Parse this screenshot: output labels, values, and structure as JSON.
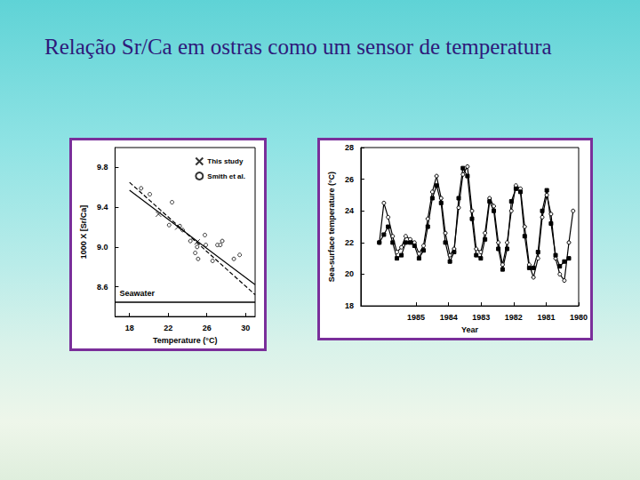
{
  "title": "Relação Sr/Ca em ostras como um sensor de temperatura",
  "chart_data": [
    {
      "type": "scatter",
      "xlabel": "Temperature (°C)",
      "ylabel": "1000 X [Sr/Ca]",
      "xlim": [
        16.5,
        31
      ],
      "xticks": [
        18,
        22,
        26,
        30
      ],
      "ylim": [
        8.3,
        10.0
      ],
      "yticks": [
        8.6,
        {
          "value": 9,
          "label": "9.0"
        },
        9.4,
        9.8
      ],
      "grid": false,
      "legend": "upper right",
      "annotations": [
        {
          "text": "Seawater",
          "y": 8.45
        }
      ],
      "series": [
        {
          "name": "This study",
          "marker": "x",
          "color": "#000000",
          "x": [
            21.0,
            23.0,
            25.0
          ],
          "values": [
            9.33,
            9.2,
            9.05
          ]
        },
        {
          "name": "Smith et al.",
          "marker": "circle",
          "color": "#000000",
          "x": [
            19.2,
            20.1,
            22.4,
            22.1,
            23.2,
            23.5,
            24.3,
            25.0,
            24.8,
            25.1,
            25.8,
            25.9,
            27.1,
            27.4,
            27.6,
            26.6,
            28.8,
            29.4
          ],
          "values": [
            9.59,
            9.53,
            9.45,
            9.22,
            9.21,
            9.17,
            9.06,
            9.0,
            8.94,
            8.88,
            9.12,
            9.02,
            9.02,
            9.02,
            9.06,
            8.86,
            8.88,
            8.92
          ]
        },
        {
          "type": "line",
          "line_style": "solid",
          "color": "#000000",
          "x": [
            18,
            31
          ],
          "values": [
            9.57,
            8.62
          ]
        },
        {
          "type": "line",
          "line_style": "dashed",
          "color": "#000000",
          "x": [
            18,
            31
          ],
          "values": [
            9.65,
            8.52
          ]
        }
      ]
    },
    {
      "type": "line",
      "xlabel": "Year",
      "ylabel": "Sea-surface temperature (°C)",
      "xlim": [
        1986.7,
        1980
      ],
      "xticks": [
        1985,
        1984,
        1983,
        1982,
        1981,
        1980
      ],
      "ylim": [
        18,
        28
      ],
      "yticks": [
        18,
        20,
        22,
        24,
        26,
        28
      ],
      "grid": false,
      "x": [
        1986.13,
        1985.99,
        1985.86,
        1985.72,
        1985.59,
        1985.45,
        1985.32,
        1985.18,
        1985.05,
        1984.91,
        1984.77,
        1984.64,
        1984.5,
        1984.37,
        1984.23,
        1984.1,
        1983.96,
        1983.83,
        1983.69,
        1983.56,
        1983.42,
        1983.28,
        1983.15,
        1983.01,
        1982.88,
        1982.74,
        1982.61,
        1982.47,
        1982.34,
        1982.2,
        1982.07,
        1981.93,
        1981.79,
        1981.66,
        1981.52,
        1981.39,
        1981.25,
        1981.12,
        1980.98,
        1980.85,
        1980.71,
        1980.58,
        1980.44,
        1980.3,
        1980.17
      ],
      "series": [
        {
          "marker": "circle",
          "color": "#000000",
          "line_style": "solid",
          "values": [
            22.0,
            24.5,
            23.6,
            22.4,
            21.4,
            21.7,
            22.4,
            22.2,
            22.0,
            21.3,
            21.8,
            23.5,
            25.2,
            26.2,
            24.8,
            22.6,
            21.2,
            21.6,
            24.2,
            26.3,
            26.8,
            24.0,
            21.6,
            21.4,
            22.6,
            24.8,
            24.3,
            22.0,
            20.6,
            22.0,
            24.0,
            25.6,
            25.4,
            23.0,
            20.6,
            19.8,
            21.0,
            23.6,
            25.0,
            23.8,
            21.0,
            20.0,
            19.6,
            22.0,
            24.0
          ]
        },
        {
          "marker": "square",
          "color": "#000000",
          "line_style": "solid",
          "values": [
            22.0,
            22.5,
            23.0,
            22.0,
            21.0,
            21.2,
            22.0,
            22.0,
            21.8,
            21.0,
            21.5,
            23.0,
            24.8,
            25.6,
            24.5,
            22.0,
            20.8,
            21.4,
            24.8,
            26.7,
            26.2,
            23.5,
            21.2,
            21.0,
            22.2,
            24.6,
            24.0,
            21.6,
            20.3,
            21.6,
            24.6,
            25.4,
            25.2,
            22.4,
            20.4,
            20.4,
            21.4,
            24.0,
            25.3,
            23.2,
            21.2,
            20.5,
            20.8,
            21.0,
            null
          ]
        }
      ]
    }
  ]
}
